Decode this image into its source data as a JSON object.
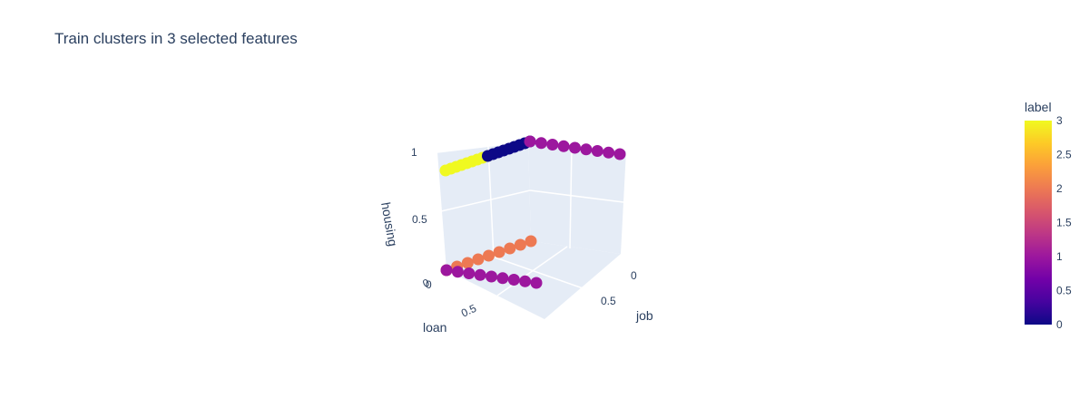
{
  "chart_data": {
    "type": "scatter",
    "subtype": "3d",
    "title": "Train clusters in 3 selected features",
    "axes": {
      "x": {
        "label": "job",
        "ticks": [
          "0",
          "0.5"
        ]
      },
      "y": {
        "label": "loan",
        "ticks": [
          "0",
          "0.5"
        ]
      },
      "z": {
        "label": "housing",
        "ticks": [
          "0",
          "0.5",
          "1"
        ]
      }
    },
    "colorbar": {
      "title": "label",
      "range": [
        0,
        3
      ],
      "ticks": [
        "0",
        "0.5",
        "1",
        "1.5",
        "2",
        "2.5",
        "3"
      ],
      "colorscale": [
        "#0d0887",
        "#46039f",
        "#7201a8",
        "#9c179e",
        "#bd3786",
        "#d8576b",
        "#ed7953",
        "#fb9f3a",
        "#fdca26",
        "#f0f921"
      ]
    },
    "series": [
      {
        "label_value": 3,
        "color": "#f0f921",
        "points": {
          "job": 0,
          "loan": [
            1,
            0.5
          ],
          "housing": 1
        }
      },
      {
        "label_value": 0,
        "color": "#0d0887",
        "points": {
          "job": 0,
          "loan": [
            0.5,
            0
          ],
          "housing": 1
        }
      },
      {
        "label_value": 1,
        "color": "#9c179e",
        "points": {
          "job": [
            0,
            1
          ],
          "loan": 0,
          "housing": 1
        }
      },
      {
        "label_value": 2,
        "color": "#ed7953",
        "points": {
          "job": 0,
          "loan": [
            1,
            0
          ],
          "housing": 0
        }
      },
      {
        "label_value": 1,
        "color": "#9c179e",
        "points": {
          "job": [
            0,
            1
          ],
          "loan": 1,
          "housing": 0
        }
      }
    ]
  }
}
